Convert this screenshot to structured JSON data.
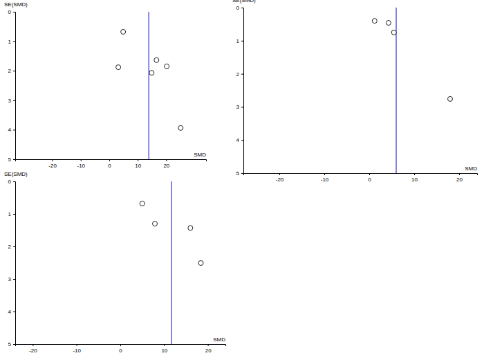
{
  "chart_data": [
    {
      "type": "scatter",
      "x_label": "SMD",
      "y_label": "SE(SMD)",
      "x": [
        4.9,
        3.2,
        14.9,
        16.6,
        20.2,
        25.1
      ],
      "values": [
        0.68,
        1.88,
        2.07,
        1.64,
        1.85,
        3.94
      ],
      "pooled_estimate": 13.9,
      "xlim": [
        -33,
        34
      ],
      "xticks": [
        -20,
        -10,
        0,
        10,
        20
      ],
      "ylim": [
        5,
        0
      ],
      "yticks": [
        0,
        1,
        2,
        3,
        4,
        5
      ],
      "marker": "open-circle"
    },
    {
      "type": "scatter",
      "x_label": "SMD",
      "y_label": "SE(SMD)",
      "x": [
        1.2,
        4.3,
        5.5,
        18.0
      ],
      "values": [
        0.4,
        0.46,
        0.75,
        2.76
      ],
      "pooled_estimate": 6.0,
      "xlim": [
        -28,
        24
      ],
      "xticks": [
        -20,
        -10,
        0,
        10,
        20
      ],
      "ylim": [
        5,
        0
      ],
      "yticks": [
        0,
        1,
        2,
        3,
        4,
        5
      ],
      "marker": "open-circle"
    },
    {
      "type": "scatter",
      "x_label": "SMD",
      "y_label": "SE(SMD)",
      "x": [
        5.0,
        7.9,
        16.0,
        18.4
      ],
      "values": [
        0.68,
        1.3,
        1.43,
        2.51
      ],
      "pooled_estimate": 11.7,
      "xlim": [
        -24,
        24
      ],
      "xticks": [
        -20,
        -10,
        0,
        10,
        20
      ],
      "ylim": [
        5,
        0
      ],
      "yticks": [
        0,
        1,
        2,
        3,
        4,
        5
      ],
      "marker": "open-circle"
    }
  ]
}
